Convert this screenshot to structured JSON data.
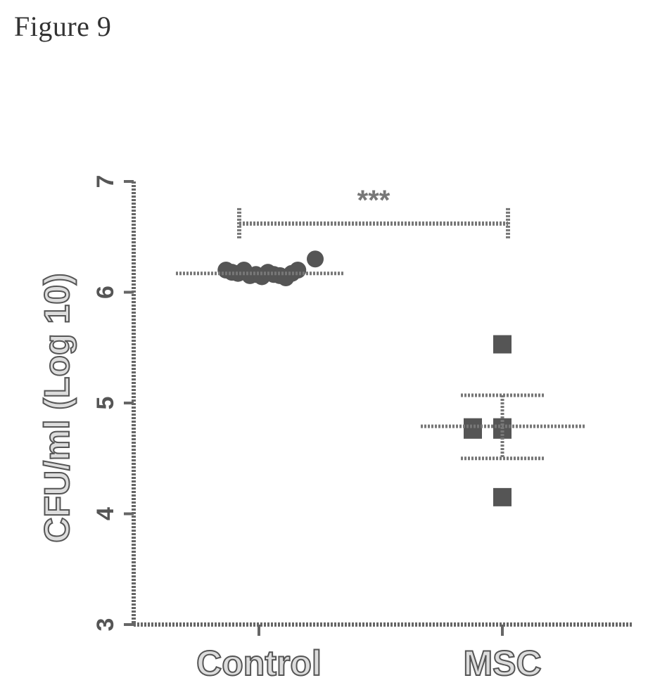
{
  "figure": {
    "title": "Figure 9"
  },
  "chart_data": {
    "type": "scatter",
    "title": "",
    "xlabel": "",
    "ylabel": "CFU/ml (Log 10)",
    "categories": [
      "Control",
      "MSC"
    ],
    "ylim": [
      3,
      7
    ],
    "yticks": [
      "3",
      "4",
      "5",
      "6",
      "7"
    ],
    "grid": false,
    "series": [
      {
        "category": "Control",
        "marker": "circle",
        "values": [
          6.3,
          6.2,
          6.18,
          6.17,
          6.2,
          6.15,
          6.16,
          6.14,
          6.18,
          6.16,
          6.15,
          6.13,
          6.17,
          6.2
        ],
        "mean": 6.17
      },
      {
        "category": "MSC",
        "marker": "square",
        "values": [
          5.53,
          4.78,
          4.78,
          4.76,
          4.76,
          4.15
        ],
        "mean": 4.79,
        "error_upper": 5.07,
        "error_lower": 4.5
      }
    ],
    "significance": {
      "between": [
        "Control",
        "MSC"
      ],
      "label": "***",
      "y": 6.62
    },
    "colors": {
      "marker": "#555555",
      "axis": "#666666"
    }
  }
}
